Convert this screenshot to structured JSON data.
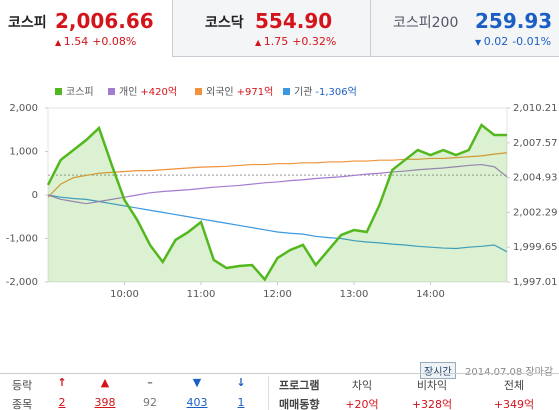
{
  "tabs": [
    {
      "name": "코스피",
      "value": "2,006.66",
      "change": "1.54",
      "percent": "+0.08%",
      "direction": "up"
    },
    {
      "name": "코스닥",
      "value": "554.90",
      "change": "1.75",
      "percent": "+0.32%",
      "direction": "up"
    },
    {
      "name": "코스피200",
      "value": "259.93",
      "change": "0.02",
      "percent": "-0.01%",
      "direction": "down"
    }
  ],
  "chart_data": {
    "type": "line",
    "x": [
      "09:00",
      "09:10",
      "09:20",
      "09:30",
      "09:40",
      "09:50",
      "10:00",
      "10:10",
      "10:20",
      "10:30",
      "10:40",
      "10:50",
      "11:00",
      "11:10",
      "11:20",
      "11:30",
      "11:40",
      "11:50",
      "12:00",
      "12:10",
      "12:20",
      "12:30",
      "12:40",
      "12:50",
      "13:00",
      "13:10",
      "13:20",
      "13:30",
      "13:40",
      "13:50",
      "14:00",
      "14:10",
      "14:20",
      "14:30",
      "14:40",
      "14:50",
      "15:00"
    ],
    "xlim": [
      "09:00",
      "15:00"
    ],
    "xticks": [
      "10:00",
      "11:00",
      "12:00",
      "13:00",
      "14:00"
    ],
    "ylim": [
      -2000,
      2000
    ],
    "yticks": [
      {
        "value": -2000,
        "label": "-2,000"
      },
      {
        "value": -1000,
        "label": "-1,000"
      },
      0,
      {
        "value": 1000,
        "label": "1,000"
      },
      {
        "value": 2000,
        "label": "2,000"
      }
    ],
    "y2lim": [
      1997.01,
      2010.21
    ],
    "y2ticks": [
      {
        "value": 1997.01,
        "label": "1,997.01"
      },
      {
        "value": 1999.65,
        "label": "1,999.65"
      },
      {
        "value": 2002.29,
        "label": "2,002.29"
      },
      {
        "value": 2004.93,
        "label": "2,004.93"
      },
      {
        "value": 2007.57,
        "label": "2,007.57"
      },
      {
        "value": 2010.21,
        "label": "2,010.21"
      }
    ],
    "reference_line": 2005.12,
    "series": [
      {
        "name": "코스피",
        "color": "#52b81e",
        "axis": "y2",
        "area": true,
        "values": [
          2004.37,
          2006.27,
          2007.02,
          2007.78,
          2008.69,
          2005.89,
          2003.23,
          2001.71,
          1999.82,
          1998.53,
          2000.2,
          2000.8,
          2001.56,
          1998.68,
          1998.07,
          1998.22,
          1998.3,
          1997.2,
          1998.83,
          1999.44,
          1999.82,
          1998.3,
          1999.44,
          2000.58,
          2000.95,
          2000.8,
          2002.85,
          2005.51,
          2006.27,
          2007.02,
          2006.64,
          2007.02,
          2006.64,
          2007.02,
          2008.92,
          2008.16,
          2008.16
        ]
      },
      {
        "name": "개인",
        "flow": "+420억",
        "color": "#a57ad1",
        "values": [
          0,
          -100,
          -150,
          -200,
          -150,
          -100,
          -50,
          0,
          50,
          80,
          100,
          120,
          150,
          180,
          200,
          220,
          250,
          280,
          300,
          330,
          350,
          380,
          400,
          420,
          450,
          480,
          500,
          530,
          550,
          580,
          600,
          620,
          650,
          680,
          700,
          650,
          420
        ]
      },
      {
        "name": "외국인",
        "flow": "+971억",
        "color": "#f0923a",
        "values": [
          -50,
          250,
          400,
          450,
          500,
          520,
          540,
          560,
          560,
          580,
          600,
          620,
          640,
          650,
          660,
          680,
          700,
          700,
          720,
          720,
          740,
          740,
          760,
          760,
          780,
          780,
          800,
          800,
          820,
          820,
          840,
          840,
          860,
          880,
          900,
          940,
          971
        ]
      },
      {
        "name": "기관",
        "flow": "-1,306억",
        "color": "#3a98e0",
        "values": [
          0,
          -50,
          -80,
          -100,
          -150,
          -200,
          -250,
          -300,
          -350,
          -400,
          -450,
          -500,
          -550,
          -600,
          -650,
          -700,
          -750,
          -800,
          -850,
          -880,
          -900,
          -950,
          -980,
          -1000,
          -1050,
          -1080,
          -1100,
          -1130,
          -1150,
          -1180,
          -1200,
          -1220,
          -1230,
          -1200,
          -1180,
          -1150,
          -1306
        ]
      }
    ]
  },
  "status": {
    "button": "장시간",
    "date": "2014.07.08 장마감"
  },
  "breadth": {
    "label1": "등락",
    "label2": "종목",
    "counts": [
      2,
      398,
      92,
      403,
      1
    ]
  },
  "program": {
    "label1": "프로그램",
    "label2": "매매동향",
    "columns": [
      {
        "name": "차익",
        "value": "+20억"
      },
      {
        "name": "비차익",
        "value": "+328억"
      },
      {
        "name": "전체",
        "value": "+349억"
      }
    ]
  }
}
